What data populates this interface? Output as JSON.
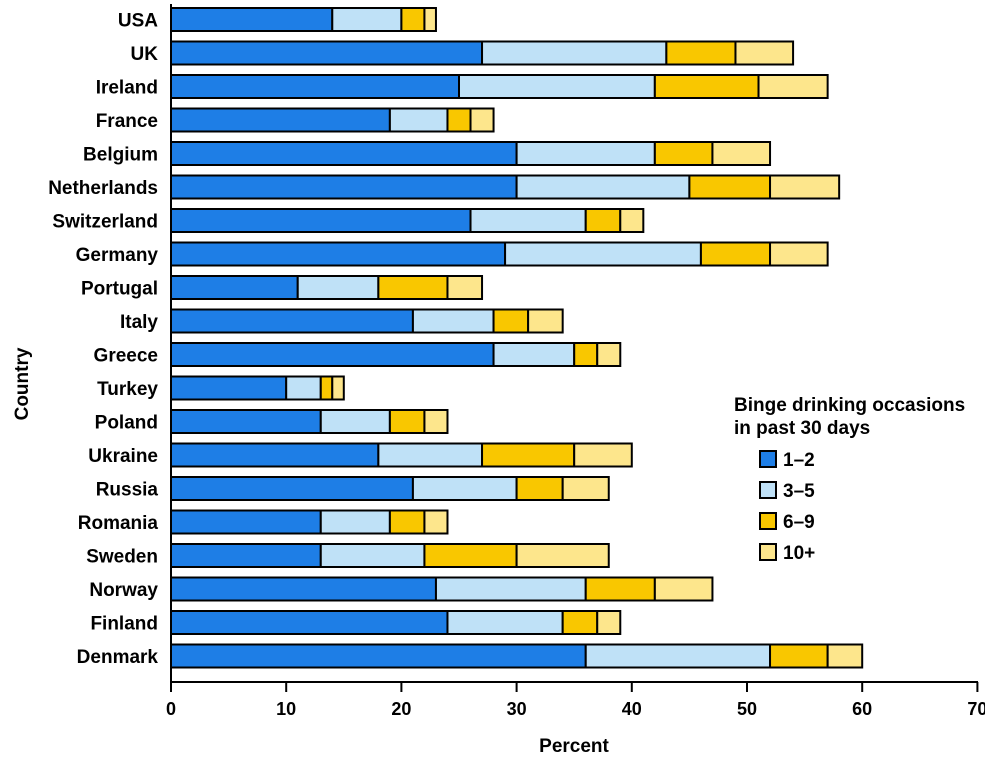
{
  "chart_data": {
    "type": "bar",
    "orientation": "horizontal",
    "stacked": true,
    "title": "",
    "xlabel": "Percent",
    "ylabel": "Country",
    "xlim": [
      0,
      70
    ],
    "xticks": [
      "0",
      "10",
      "20",
      "30",
      "40",
      "50",
      "60",
      "70"
    ],
    "grid": false,
    "legend_title_lines": [
      "Binge drinking occasions",
      "in past 30 days"
    ],
    "legend_position": "right",
    "categories": [
      "USA",
      "UK",
      "Ireland",
      "France",
      "Belgium",
      "Netherlands",
      "Switzerland",
      "Germany",
      "Portugal",
      "Italy",
      "Greece",
      "Turkey",
      "Poland",
      "Ukraine",
      "Russia",
      "Romania",
      "Sweden",
      "Norway",
      "Finland",
      "Denmark"
    ],
    "series": [
      {
        "name": "1–2",
        "color": "#1e7ee6",
        "values": [
          14,
          27,
          25,
          19,
          30,
          30,
          26,
          29,
          11,
          21,
          28,
          10,
          13,
          18,
          21,
          13,
          13,
          23,
          24,
          36
        ]
      },
      {
        "name": "3–5",
        "color": "#bfe1f7",
        "values": [
          6,
          16,
          17,
          5,
          12,
          15,
          10,
          17,
          7,
          7,
          7,
          3,
          6,
          9,
          9,
          6,
          9,
          13,
          10,
          16
        ]
      },
      {
        "name": "6–9",
        "color": "#f9c700",
        "values": [
          2,
          6,
          9,
          2,
          5,
          7,
          3,
          6,
          6,
          3,
          2,
          1,
          3,
          8,
          4,
          3,
          8,
          6,
          3,
          5
        ]
      },
      {
        "name": "10+",
        "color": "#fde68c",
        "values": [
          1,
          5,
          6,
          2,
          5,
          6,
          2,
          5,
          3,
          3,
          2,
          1,
          2,
          5,
          4,
          2,
          8,
          5,
          2,
          3
        ]
      }
    ]
  }
}
